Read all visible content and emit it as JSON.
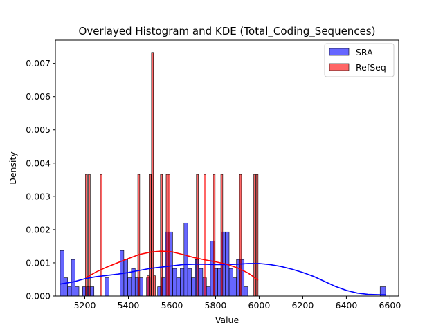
{
  "chart_data": {
    "type": "histogram",
    "title": "Overlayed Histogram and KDE (Total_Coding_Sequences)",
    "xlabel": "Value",
    "ylabel": "Density",
    "xlim": [
      5065,
      6640
    ],
    "ylim": [
      0,
      0.0077
    ],
    "xticks": [
      5200,
      5400,
      5600,
      5800,
      6000,
      6200,
      6400,
      6600
    ],
    "yticks": [
      0.0,
      0.001,
      0.002,
      0.003,
      0.004,
      0.005,
      0.006,
      0.007
    ],
    "ytick_labels": [
      "0.000",
      "0.001",
      "0.002",
      "0.003",
      "0.004",
      "0.005",
      "0.006",
      "0.007"
    ],
    "legend_position": "upper right",
    "series": [
      {
        "name": "SRA",
        "color": "#0000ff",
        "bar_opacity": 0.6,
        "bins": [
          [
            5087,
            5104,
            0.00137
          ],
          [
            5104,
            5121,
            0.00055
          ],
          [
            5121,
            5138,
            0.00028
          ],
          [
            5138,
            5156,
            0.0011
          ],
          [
            5156,
            5173,
            0.00028
          ],
          [
            5173,
            5190,
            0.0
          ],
          [
            5190,
            5207,
            0.00028
          ],
          [
            5207,
            5224,
            0.00028
          ],
          [
            5224,
            5242,
            0.00028
          ],
          [
            5242,
            5259,
            0.0
          ],
          [
            5259,
            5276,
            0.0
          ],
          [
            5276,
            5293,
            0.0
          ],
          [
            5293,
            5311,
            0.00055
          ],
          [
            5311,
            5328,
            0.0
          ],
          [
            5328,
            5345,
            0.0
          ],
          [
            5345,
            5362,
            0.0
          ],
          [
            5362,
            5379,
            0.00137
          ],
          [
            5379,
            5397,
            0.0011
          ],
          [
            5397,
            5414,
            0.00055
          ],
          [
            5414,
            5431,
            0.00083
          ],
          [
            5431,
            5448,
            0.00055
          ],
          [
            5448,
            5466,
            0.00055
          ],
          [
            5466,
            5483,
            0.0
          ],
          [
            5483,
            5500,
            0.00055
          ],
          [
            5500,
            5517,
            0.0
          ],
          [
            5517,
            5534,
            0.0
          ],
          [
            5534,
            5552,
            0.00028
          ],
          [
            5552,
            5569,
            0.00055
          ],
          [
            5569,
            5586,
            0.00193
          ],
          [
            5586,
            5603,
            0.00193
          ],
          [
            5603,
            5621,
            0.00083
          ],
          [
            5621,
            5638,
            0.00055
          ],
          [
            5638,
            5655,
            0.00083
          ],
          [
            5655,
            5672,
            0.0022
          ],
          [
            5672,
            5689,
            0.00083
          ],
          [
            5689,
            5707,
            0.00055
          ],
          [
            5707,
            5724,
            0.0011
          ],
          [
            5724,
            5741,
            0.00083
          ],
          [
            5741,
            5758,
            0.00055
          ],
          [
            5758,
            5776,
            0.00028
          ],
          [
            5776,
            5793,
            0.00165
          ],
          [
            5793,
            5810,
            0.00083
          ],
          [
            5810,
            5827,
            0.00083
          ],
          [
            5827,
            5844,
            0.00193
          ],
          [
            5844,
            5862,
            0.00193
          ],
          [
            5862,
            5879,
            0.00083
          ],
          [
            5879,
            5896,
            0.00055
          ],
          [
            5896,
            5913,
            0.0011
          ],
          [
            5913,
            5931,
            0.0011
          ],
          [
            5931,
            5948,
            0.00028
          ],
          [
            5948,
            5965,
            0.0
          ],
          [
            5965,
            5982,
            0.0
          ],
          [
            5982,
            5999,
            0.0
          ],
          [
            5999,
            6017,
            0.0
          ],
          [
            6017,
            6034,
            0.0
          ],
          [
            6034,
            6051,
            0.0
          ],
          [
            6051,
            6068,
            0.0
          ],
          [
            6068,
            6086,
            0.0
          ],
          [
            6086,
            6103,
            0.0
          ],
          [
            6103,
            6120,
            0.0
          ],
          [
            6555,
            6580,
            0.00028
          ]
        ],
        "kde": [
          [
            5087,
            0.00036
          ],
          [
            5150,
            0.00043
          ],
          [
            5200,
            0.00052
          ],
          [
            5250,
            0.00058
          ],
          [
            5300,
            0.00062
          ],
          [
            5350,
            0.00066
          ],
          [
            5400,
            0.00071
          ],
          [
            5450,
            0.00077
          ],
          [
            5500,
            0.00083
          ],
          [
            5550,
            0.00087
          ],
          [
            5600,
            0.00091
          ],
          [
            5650,
            0.00095
          ],
          [
            5700,
            0.00096
          ],
          [
            5750,
            0.00096
          ],
          [
            5800,
            0.00095
          ],
          [
            5850,
            0.00095
          ],
          [
            5900,
            0.00096
          ],
          [
            5950,
            0.00098
          ],
          [
            6000,
            0.00098
          ],
          [
            6050,
            0.00095
          ],
          [
            6100,
            0.00089
          ],
          [
            6150,
            0.00081
          ],
          [
            6200,
            0.00071
          ],
          [
            6250,
            0.00059
          ],
          [
            6300,
            0.00044
          ],
          [
            6350,
            0.00029
          ],
          [
            6400,
            0.00017
          ],
          [
            6450,
            9e-05
          ],
          [
            6500,
            5e-05
          ],
          [
            6550,
            4e-05
          ],
          [
            6580,
            4e-05
          ]
        ]
      },
      {
        "name": "RefSeq",
        "color": "#ff0000",
        "bar_opacity": 0.6,
        "bins": [
          [
            5203,
            5212,
            0.00366
          ],
          [
            5216,
            5225,
            0.00366
          ],
          [
            5271,
            5280,
            0.00366
          ],
          [
            5443,
            5452,
            0.00366
          ],
          [
            5486,
            5495,
            0.00061
          ],
          [
            5495,
            5504,
            0.00366
          ],
          [
            5506,
            5515,
            0.00733
          ],
          [
            5515,
            5524,
            0.00061
          ],
          [
            5547,
            5556,
            0.00366
          ],
          [
            5573,
            5582,
            0.00366
          ],
          [
            5582,
            5591,
            0.00366
          ],
          [
            5712,
            5721,
            0.00366
          ],
          [
            5746,
            5755,
            0.00366
          ],
          [
            5789,
            5798,
            0.00366
          ],
          [
            5824,
            5833,
            0.00366
          ],
          [
            5910,
            5919,
            0.00366
          ],
          [
            5975,
            5984,
            0.00366
          ],
          [
            5986,
            5995,
            0.00366
          ]
        ],
        "kde": [
          [
            5205,
            0.00055
          ],
          [
            5250,
            0.00072
          ],
          [
            5300,
            0.00087
          ],
          [
            5350,
            0.001
          ],
          [
            5400,
            0.00113
          ],
          [
            5450,
            0.00125
          ],
          [
            5500,
            0.00132
          ],
          [
            5550,
            0.00135
          ],
          [
            5600,
            0.00133
          ],
          [
            5650,
            0.00125
          ],
          [
            5700,
            0.00116
          ],
          [
            5750,
            0.00109
          ],
          [
            5800,
            0.00103
          ],
          [
            5850,
            0.00096
          ],
          [
            5900,
            0.00085
          ],
          [
            5950,
            0.00069
          ],
          [
            5995,
            0.00048
          ]
        ]
      }
    ]
  }
}
